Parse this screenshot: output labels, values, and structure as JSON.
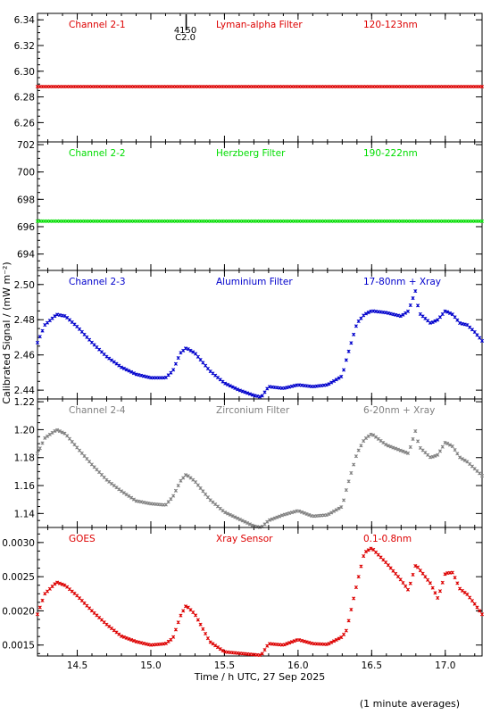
{
  "figure": {
    "ylabel": "Calibrated Signal / (mW m⁻²)",
    "xlabel": "Time / h UTC, 27 Sep 2025",
    "footnote": "(1 minute averages)",
    "x_ticks": [
      "14.5",
      "15.0",
      "15.5",
      "16.0",
      "16.5",
      "17.0"
    ],
    "xlim": [
      14.23,
      17.25
    ],
    "marker_label_top": "4150",
    "marker_label_bottom": "C2.0",
    "marker_time": 15.24
  },
  "chart_data": [
    {
      "type": "scatter",
      "channel": "Channel 2-1",
      "filter": "Lyman-alpha Filter",
      "band": "120-123nm",
      "color": "#dd0000",
      "ylim": [
        6.245,
        6.345
      ],
      "y_ticks": [
        6.26,
        6.28,
        6.3,
        6.32,
        6.34
      ],
      "y_tick_labels": [
        "6.26",
        "6.28",
        "6.30",
        "6.32",
        "6.34"
      ],
      "x": [
        14.23,
        15.0,
        15.5,
        16.0,
        16.5,
        17.25
      ],
      "y": [
        6.288,
        6.288,
        6.288,
        6.288,
        6.288,
        6.288
      ]
    },
    {
      "type": "scatter",
      "channel": "Channel 2-2",
      "filter": "Herzberg Filter",
      "band": "190-222nm",
      "color": "#00dd00",
      "ylim": [
        692.8,
        702.2
      ],
      "y_ticks": [
        694,
        696,
        698,
        700,
        702
      ],
      "y_tick_labels": [
        "694",
        "696",
        "698",
        "700",
        "702"
      ],
      "x": [
        14.23,
        15.0,
        15.5,
        16.0,
        16.5,
        17.25
      ],
      "y": [
        696.4,
        696.4,
        696.4,
        696.4,
        696.4,
        696.4
      ]
    },
    {
      "type": "scatter",
      "channel": "Channel 2-3",
      "filter": "Aluminium Filter",
      "band": "17-80nm + Xray",
      "color": "#0000cc",
      "ylim": [
        2.435,
        2.508
      ],
      "y_ticks": [
        2.44,
        2.46,
        2.48,
        2.5
      ],
      "y_tick_labels": [
        "2.44",
        "2.46",
        "2.48",
        "2.50"
      ],
      "x": [
        14.23,
        14.28,
        14.36,
        14.42,
        14.5,
        14.6,
        14.7,
        14.8,
        14.9,
        15.0,
        15.1,
        15.15,
        15.2,
        15.24,
        15.3,
        15.4,
        15.5,
        15.6,
        15.7,
        15.75,
        15.8,
        15.9,
        16.0,
        16.1,
        16.2,
        16.3,
        16.33,
        16.4,
        16.45,
        16.5,
        16.6,
        16.7,
        16.75,
        16.8,
        16.82,
        16.9,
        16.95,
        17.0,
        17.05,
        17.1,
        17.15,
        17.2,
        17.25
      ],
      "y": [
        2.467,
        2.477,
        2.483,
        2.482,
        2.476,
        2.467,
        2.459,
        2.453,
        2.449,
        2.447,
        2.447,
        2.451,
        2.461,
        2.464,
        2.461,
        2.451,
        2.444,
        2.44,
        2.437,
        2.436,
        2.442,
        2.441,
        2.443,
        2.442,
        2.443,
        2.448,
        2.458,
        2.478,
        2.483,
        2.485,
        2.484,
        2.482,
        2.485,
        2.497,
        2.484,
        2.478,
        2.48,
        2.485,
        2.483,
        2.478,
        2.477,
        2.473,
        2.468
      ]
    },
    {
      "type": "scatter",
      "channel": "Channel 2-4",
      "filter": "Zirconium Filter",
      "band": "6-20nm + Xray",
      "color": "#808080",
      "ylim": [
        1.13,
        1.222
      ],
      "y_ticks": [
        1.14,
        1.16,
        1.18,
        1.2,
        1.22
      ],
      "y_tick_labels": [
        "1.14",
        "1.16",
        "1.18",
        "1.20",
        "1.22"
      ],
      "x": [
        14.23,
        14.28,
        14.36,
        14.42,
        14.5,
        14.6,
        14.7,
        14.8,
        14.9,
        15.0,
        15.1,
        15.15,
        15.2,
        15.24,
        15.3,
        15.4,
        15.5,
        15.6,
        15.7,
        15.75,
        15.8,
        15.9,
        16.0,
        16.1,
        16.2,
        16.3,
        16.33,
        16.4,
        16.45,
        16.5,
        16.6,
        16.7,
        16.75,
        16.8,
        16.82,
        16.9,
        16.95,
        17.0,
        17.05,
        17.1,
        17.15,
        17.2,
        17.25
      ],
      "y": [
        1.183,
        1.194,
        1.2,
        1.197,
        1.187,
        1.175,
        1.164,
        1.156,
        1.149,
        1.147,
        1.146,
        1.152,
        1.163,
        1.168,
        1.163,
        1.15,
        1.141,
        1.136,
        1.131,
        1.13,
        1.135,
        1.139,
        1.142,
        1.138,
        1.139,
        1.145,
        1.158,
        1.183,
        1.193,
        1.197,
        1.189,
        1.185,
        1.183,
        1.2,
        1.188,
        1.18,
        1.182,
        1.191,
        1.188,
        1.18,
        1.177,
        1.172,
        1.167
      ]
    },
    {
      "type": "scatter",
      "channel": "GOES",
      "filter": "Xray Sensor",
      "band": "0.1-0.8nm",
      "color": "#dd0000",
      "ylim": [
        0.00134,
        0.00322
      ],
      "y_ticks": [
        0.0015,
        0.002,
        0.0025,
        0.003
      ],
      "y_tick_labels": [
        "0.0015",
        "0.0020",
        "0.0025",
        "0.0030"
      ],
      "x": [
        14.23,
        14.28,
        14.36,
        14.42,
        14.5,
        14.6,
        14.7,
        14.8,
        14.9,
        15.0,
        15.1,
        15.15,
        15.2,
        15.24,
        15.3,
        15.4,
        15.5,
        15.6,
        15.7,
        15.75,
        15.8,
        15.9,
        16.0,
        16.1,
        16.2,
        16.3,
        16.33,
        16.4,
        16.45,
        16.5,
        16.6,
        16.7,
        16.75,
        16.8,
        16.82,
        16.9,
        16.95,
        17.0,
        17.05,
        17.1,
        17.15,
        17.2,
        17.25
      ],
      "y": [
        0.00195,
        0.00225,
        0.00242,
        0.00237,
        0.00222,
        0.002,
        0.0018,
        0.00163,
        0.00155,
        0.0015,
        0.00152,
        0.0016,
        0.00192,
        0.00208,
        0.00195,
        0.00155,
        0.0014,
        0.00138,
        0.00136,
        0.00135,
        0.00152,
        0.0015,
        0.00158,
        0.00152,
        0.00151,
        0.00162,
        0.00172,
        0.0024,
        0.00285,
        0.00292,
        0.0027,
        0.00245,
        0.0023,
        0.00268,
        0.00262,
        0.0024,
        0.00218,
        0.00255,
        0.00256,
        0.00232,
        0.00224,
        0.0021,
        0.00195
      ]
    }
  ]
}
